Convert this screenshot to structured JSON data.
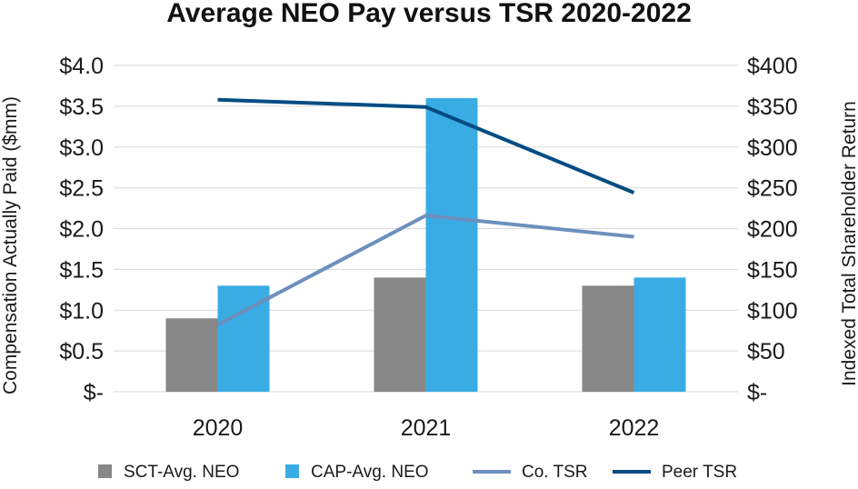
{
  "chart_data": {
    "type": "bar",
    "title": "Average NEO Pay versus TSR 2020-2022",
    "categories": [
      "2020",
      "2021",
      "2022"
    ],
    "ylabel": "Compensation Actually Paid ($mm)",
    "y2label": "Indexed Total Shareholder Return",
    "ylim": [
      0,
      4.0
    ],
    "y2lim": [
      0,
      400
    ],
    "yticks": [
      "$-",
      "$0.5",
      "$1.0",
      "$1.5",
      "$2.0",
      "$2.5",
      "$3.0",
      "$3.5",
      "$4.0"
    ],
    "y2ticks": [
      "$-",
      "$50",
      "$100",
      "$150",
      "$200",
      "$250",
      "$300",
      "$350",
      "$400"
    ],
    "grid": true,
    "legend_position": "bottom",
    "bar_series": [
      {
        "name": "SCT-Avg. NEO",
        "color": "#878787",
        "values": [
          0.9,
          1.4,
          1.3
        ]
      },
      {
        "name": "CAP-Avg. NEO",
        "color": "#3aace4",
        "values": [
          1.3,
          3.6,
          1.4
        ]
      }
    ],
    "line_series": [
      {
        "name": "Co. TSR",
        "color": "#6d8fbd",
        "axis": "right",
        "values": [
          82,
          216,
          190
        ]
      },
      {
        "name": "Peer TSR",
        "color": "#004c82",
        "axis": "right",
        "values": [
          358,
          349,
          244
        ]
      }
    ]
  }
}
